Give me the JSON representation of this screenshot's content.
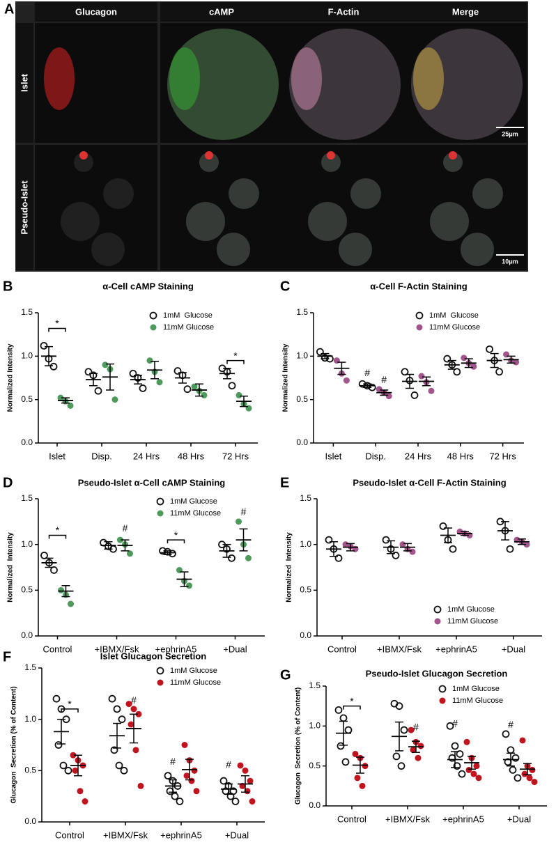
{
  "panel_a": {
    "letter": "A",
    "columns": [
      "Glucagon",
      "cAMP",
      "F-Actin",
      "Merge"
    ],
    "rows": [
      "Islet",
      "Pseudo-Islet"
    ],
    "scalebars": [
      "25μm",
      "10μm"
    ]
  },
  "chart_data": [
    {
      "type": "dot",
      "letter": "B",
      "title": "α-Cell cAMP Staining",
      "ylabel": "Normalized Intensity",
      "legend": "upper right",
      "categories": [
        "Islet",
        "Disp.",
        "24 Hrs",
        "48 Hrs",
        "72 Hrs"
      ],
      "ylim": [
        0,
        1.5
      ],
      "yticks": [
        {
          "value": 0,
          "label": "0.0"
        },
        0.5,
        {
          "value": 1,
          "label": "1.0"
        },
        1.5
      ],
      "series": [
        {
          "name": "1mM  Glucose",
          "color": "#111111",
          "hollow": true,
          "points": [
            [
              1.12,
              0.97,
              0.88
            ],
            [
              0.82,
              0.78,
              0.6
            ],
            [
              0.8,
              0.75,
              0.63
            ],
            [
              0.83,
              0.78,
              0.62
            ],
            [
              0.86,
              0.82,
              0.66
            ]
          ],
          "means": [
            1.0,
            0.73,
            0.73,
            0.75,
            0.8
          ],
          "sems": [
            0.11,
            0.07,
            0.05,
            0.06,
            0.06
          ]
        },
        {
          "name": "11mM Glucose",
          "color": "#4e9a5c",
          "hollow": false,
          "points": [
            [
              0.52,
              0.48,
              0.43
            ],
            [
              0.9,
              0.85,
              0.5
            ],
            [
              0.95,
              0.82,
              0.7
            ],
            [
              0.65,
              0.6,
              0.55
            ],
            [
              0.55,
              0.45,
              0.4
            ]
          ],
          "means": [
            0.49,
            0.76,
            0.84,
            0.61,
            0.48
          ],
          "sems": [
            0.03,
            0.15,
            0.1,
            0.07,
            0.06
          ]
        }
      ],
      "significance": [
        {
          "category": 0,
          "y": 1.32,
          "label": "*"
        },
        {
          "category": 4,
          "y": 0.95,
          "label": "*"
        }
      ],
      "markers": []
    },
    {
      "type": "dot",
      "letter": "C",
      "title": "α-Cell F-Actin Staining",
      "ylabel": "Normalized Intensity",
      "legend": "upper right",
      "categories": [
        "Islet",
        "Disp.",
        "24 Hrs",
        "48 Hrs",
        "72 Hrs"
      ],
      "ylim": [
        0,
        1.5
      ],
      "yticks": [
        {
          "value": 0,
          "label": "0.0"
        },
        0.5,
        {
          "value": 1,
          "label": "1.0"
        },
        1.5
      ],
      "series": [
        {
          "name": "1mM  Glucose",
          "color": "#111111",
          "hollow": true,
          "points": [
            [
              1.05,
              0.98,
              0.97
            ],
            [
              0.68,
              0.66,
              0.64
            ],
            [
              0.82,
              0.72,
              0.55
            ],
            [
              0.97,
              0.9,
              0.82
            ],
            [
              1.08,
              0.95,
              0.82
            ]
          ],
          "means": [
            1.0,
            0.66,
            0.71,
            0.9,
            0.95
          ],
          "sems": [
            0.03,
            0.02,
            0.08,
            0.05,
            0.08
          ]
        },
        {
          "name": "11mM Glucose",
          "color": "#a2558c",
          "hollow": false,
          "points": [
            [
              0.95,
              0.8,
              0.72
            ],
            [
              0.62,
              0.58,
              0.54
            ],
            [
              0.77,
              0.7,
              0.6
            ],
            [
              0.98,
              0.92,
              0.88
            ],
            [
              1.02,
              0.95,
              0.93
            ]
          ],
          "means": [
            0.86,
            0.58,
            0.71,
            0.92,
            0.96
          ],
          "sems": [
            0.07,
            0.03,
            0.05,
            0.05,
            0.04
          ]
        }
      ],
      "significance": [],
      "markers": [
        {
          "series": 0,
          "category": 1,
          "y": 0.8,
          "label": "#"
        },
        {
          "series": 1,
          "category": 1,
          "y": 0.72,
          "label": "#"
        }
      ]
    },
    {
      "type": "dot",
      "letter": "D",
      "title": "Pseudo-Islet α-Cell cAMP Staining",
      "ylabel": "Normalized  Intensity",
      "legend": "upper right",
      "categories": [
        "Control",
        "+IBMX/Fsk",
        "+ephrinA5",
        "+Dual"
      ],
      "ylim": [
        0,
        1.5
      ],
      "yticks": [
        {
          "value": 0,
          "label": "0.0"
        },
        0.5,
        {
          "value": 1,
          "label": "1.0"
        },
        1.5
      ],
      "series": [
        {
          "name": "1mM Glucose",
          "color": "#111111",
          "hollow": true,
          "points": [
            [
              0.88,
              0.8,
              0.72
            ],
            [
              1.02,
              0.98,
              0.95
            ],
            [
              0.93,
              0.92,
              0.9
            ],
            [
              1.0,
              0.95,
              0.85
            ]
          ],
          "means": [
            0.8,
            0.99,
            0.91,
            0.93
          ],
          "sems": [
            0.05,
            0.04,
            0.02,
            0.07
          ]
        },
        {
          "name": "11mM Glucose",
          "color": "#4e9a5c",
          "hollow": false,
          "points": [
            [
              0.5,
              0.45,
              0.35
            ],
            [
              1.05,
              1.0,
              0.9
            ],
            [
              0.72,
              0.6,
              0.55
            ],
            [
              1.25,
              1.0,
              0.85
            ]
          ],
          "means": [
            0.49,
            0.99,
            0.62,
            1.05
          ],
          "sems": [
            0.06,
            0.06,
            0.08,
            0.12
          ]
        }
      ],
      "significance": [
        {
          "category": 0,
          "y": 1.1,
          "label": "*"
        },
        {
          "category": 2,
          "y": 1.05,
          "label": "*"
        }
      ],
      "markers": [
        {
          "series": 1,
          "category": 1,
          "y": 1.17,
          "label": "#"
        },
        {
          "series": 1,
          "category": 3,
          "y": 1.35,
          "label": "#"
        }
      ]
    },
    {
      "type": "dot",
      "letter": "E",
      "title": "Pseudo-Islet α-Cell F-Actin Staining",
      "ylabel": "Normalized  Intensity",
      "legend": "lower right",
      "categories": [
        "Control",
        "+IBMX/Fsk",
        "+ephrinA5",
        "+Dual"
      ],
      "ylim": [
        0,
        1.5
      ],
      "yticks": [
        {
          "value": 0,
          "label": "0.0"
        },
        0.5,
        {
          "value": 1,
          "label": "1.0"
        },
        1.5
      ],
      "series": [
        {
          "name": "1mM Glucose",
          "color": "#111111",
          "hollow": true,
          "points": [
            [
              1.05,
              0.95,
              0.85
            ],
            [
              1.05,
              0.95,
              0.88
            ],
            [
              1.2,
              1.05,
              0.95
            ],
            [
              1.25,
              1.15,
              0.95
            ]
          ],
          "means": [
            0.95,
            0.97,
            1.1,
            1.15
          ],
          "sems": [
            0.08,
            0.07,
            0.08,
            0.1
          ]
        },
        {
          "name": "11mM Glucose",
          "color": "#a2558c",
          "hollow": false,
          "points": [
            [
              1.0,
              0.98,
              0.95
            ],
            [
              1.0,
              0.95,
              0.92
            ],
            [
              1.14,
              1.12,
              1.1
            ],
            [
              1.05,
              1.03,
              1.0
            ]
          ],
          "means": [
            0.97,
            0.97,
            1.12,
            1.03
          ],
          "sems": [
            0.04,
            0.04,
            0.02,
            0.03
          ]
        }
      ],
      "significance": [],
      "markers": []
    },
    {
      "type": "dot",
      "letter": "F",
      "title": "Islet Glucagon Secretion",
      "ylabel": "Glucagon  Secretion (% of Content)",
      "legend": "upper right",
      "categories": [
        "Control",
        "+IBMX/Fsk",
        "+ephrinA5",
        "+Dual"
      ],
      "ylim": [
        0,
        1.5
      ],
      "yticks": [
        {
          "value": 0,
          "label": "0.0"
        },
        0.5,
        {
          "value": 1,
          "label": "1.0"
        },
        1.5
      ],
      "series": [
        {
          "name": "1mM Glucose",
          "color": "#111111",
          "hollow": true,
          "points": [
            [
              1.2,
              1.1,
              1.0,
              0.75,
              0.55,
              0.5
            ],
            [
              1.2,
              1.1,
              1.0,
              0.7,
              0.55,
              0.5
            ],
            [
              0.45,
              0.4,
              0.35,
              0.3,
              0.25,
              0.2
            ],
            [
              0.4,
              0.35,
              0.3,
              0.3,
              0.25,
              0.2
            ]
          ],
          "means": [
            0.88,
            0.84,
            0.35,
            0.32
          ],
          "sems": [
            0.12,
            0.12,
            0.06,
            0.05
          ]
        },
        {
          "name": "11mM Glucose",
          "color": "#c0141f",
          "hollow": false,
          "points": [
            [
              0.65,
              0.6,
              0.55,
              0.5,
              0.3,
              0.2
            ],
            [
              1.15,
              1.1,
              1.05,
              0.95,
              0.7,
              0.35
            ],
            [
              0.75,
              0.6,
              0.5,
              0.45,
              0.4,
              0.3
            ],
            [
              0.55,
              0.5,
              0.4,
              0.35,
              0.3,
              0.2
            ]
          ],
          "means": [
            0.55,
            0.91,
            0.51,
            0.37
          ],
          "sems": [
            0.1,
            0.14,
            0.1,
            0.08
          ]
        }
      ],
      "significance": [
        {
          "category": 0,
          "y": 1.1,
          "label": "*"
        }
      ],
      "markers": [
        {
          "series": 1,
          "category": 1,
          "y": 1.18,
          "label": "#"
        },
        {
          "series": 0,
          "category": 2,
          "y": 0.58,
          "label": "#"
        },
        {
          "series": 0,
          "category": 3,
          "y": 0.55,
          "label": "#"
        }
      ]
    },
    {
      "type": "dot",
      "letter": "G",
      "title": "Pseudo-Islet Glucagon Secretion",
      "ylabel": "Glucagon  Secretion (% of Content)",
      "legend": "upper right",
      "categories": [
        "Control",
        "+IBMX/Fsk",
        "+ephrinA5",
        "+Dual"
      ],
      "ylim": [
        0,
        1.5
      ],
      "yticks": [
        {
          "value": 0,
          "label": "0.0"
        },
        0.5,
        {
          "value": 1,
          "label": "1.0"
        },
        1.5
      ],
      "series": [
        {
          "name": "1mM Glucose",
          "color": "#111111",
          "hollow": true,
          "points": [
            [
              1.2,
              1.1,
              0.95,
              0.75,
              0.55
            ],
            [
              1.28,
              1.25,
              0.95,
              0.62,
              0.5
            ],
            [
              1.0,
              0.75,
              0.65,
              0.6,
              0.5,
              0.4
            ],
            [
              0.9,
              0.7,
              0.6,
              0.55,
              0.45,
              0.35
            ]
          ],
          "means": [
            0.91,
            0.87,
            0.58,
            0.58
          ],
          "sems": [
            0.15,
            0.18,
            0.1,
            0.08
          ]
        },
        {
          "name": "11mM Glucose",
          "color": "#c0141f",
          "hollow": false,
          "points": [
            [
              0.65,
              0.6,
              0.5,
              0.35,
              0.25
            ],
            [
              0.95,
              0.8,
              0.75,
              0.7,
              0.6
            ],
            [
              0.8,
              0.6,
              0.5,
              0.45,
              0.4,
              0.35
            ],
            [
              0.82,
              0.5,
              0.45,
              0.4,
              0.35,
              0.3
            ]
          ],
          "means": [
            0.51,
            0.74,
            0.54,
            0.46
          ],
          "sems": [
            0.1,
            0.07,
            0.08,
            0.07
          ]
        }
      ],
      "significance": [
        {
          "category": 0,
          "y": 1.25,
          "label": "*"
        }
      ],
      "markers": [
        {
          "series": 1,
          "category": 1,
          "y": 0.98,
          "label": "#"
        },
        {
          "series": 0,
          "category": 2,
          "y": 1.02,
          "label": "#"
        },
        {
          "series": 0,
          "category": 3,
          "y": 1.01,
          "label": "#"
        }
      ]
    }
  ]
}
